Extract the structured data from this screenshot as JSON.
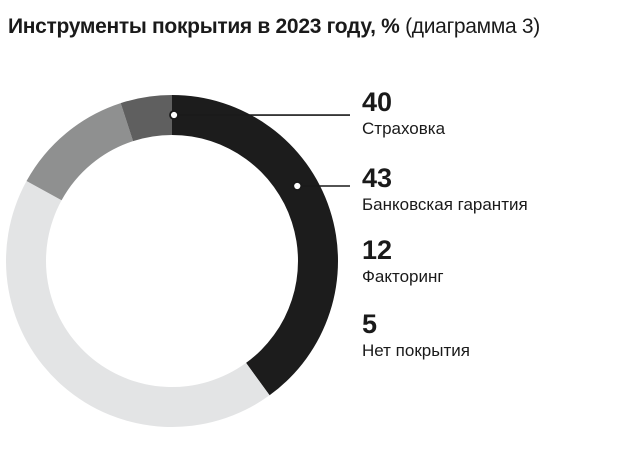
{
  "title": {
    "main": "Инструменты покрытия в 2023 году, %",
    "sub": "(диаграмма 3)"
  },
  "chart_data": {
    "type": "pie",
    "donut": true,
    "categories": [
      "Страховка",
      "Банковская гарантия",
      "Факторинг",
      "Нет покрытия"
    ],
    "values": [
      40,
      43,
      12,
      5
    ],
    "colors": [
      "#1c1c1c",
      "#e3e4e5",
      "#8f9090",
      "#5f5f5f"
    ],
    "unit": "%"
  },
  "legend": [
    {
      "value": "40",
      "label": "Страховка"
    },
    {
      "value": "43",
      "label": "Банковская гарантия"
    },
    {
      "value": "12",
      "label": "Факторинг"
    },
    {
      "value": "5",
      "label": "Нет покрытия"
    }
  ]
}
